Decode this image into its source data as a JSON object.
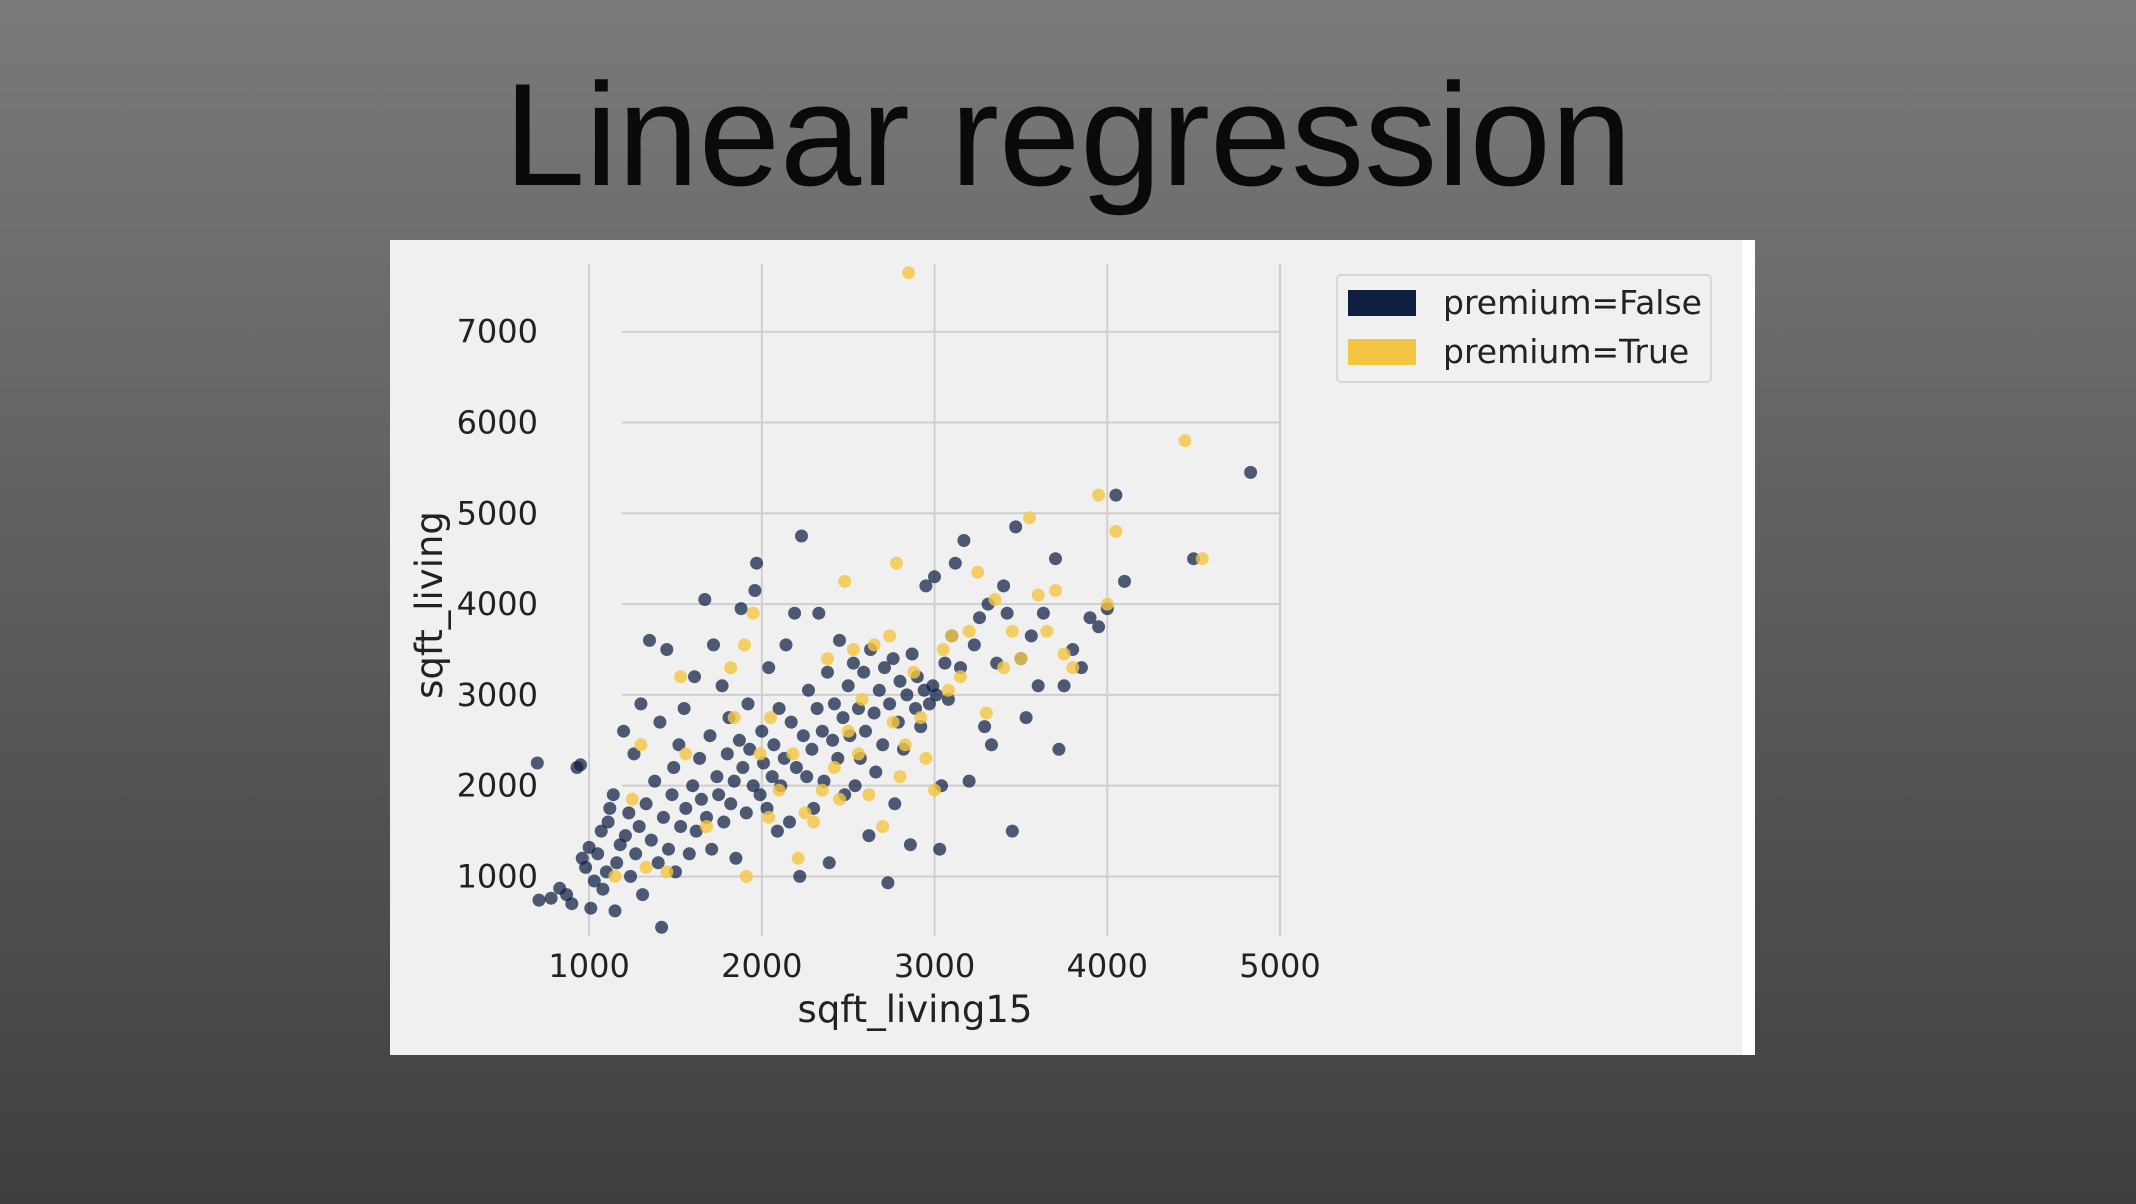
{
  "slide": {
    "title": "Linear regression"
  },
  "colors": {
    "false_series": "#0e1f42",
    "true_series": "#f4c542",
    "grid": "#cfcfcf",
    "plot_bg": "#f0f0f0"
  },
  "chart_data": {
    "type": "scatter",
    "title": "",
    "xlabel": "sqft_living15",
    "ylabel": "sqft_living",
    "xlim": [
      600,
      5000
    ],
    "ylim": [
      300,
      7900
    ],
    "xticks": [
      1000,
      2000,
      3000,
      4000,
      5000
    ],
    "yticks": [
      1000,
      2000,
      3000,
      4000,
      5000,
      6000,
      7000
    ],
    "grid": true,
    "legend_placement": "outside-top-right",
    "series": [
      {
        "name": "premium=False",
        "color": "#0e1f42",
        "points": [
          [
            700,
            2250
          ],
          [
            710,
            740
          ],
          [
            780,
            760
          ],
          [
            830,
            870
          ],
          [
            870,
            800
          ],
          [
            900,
            700
          ],
          [
            930,
            2200
          ],
          [
            950,
            2230
          ],
          [
            960,
            1200
          ],
          [
            980,
            1100
          ],
          [
            1000,
            1320
          ],
          [
            1010,
            650
          ],
          [
            1030,
            950
          ],
          [
            1050,
            1250
          ],
          [
            1070,
            1500
          ],
          [
            1080,
            860
          ],
          [
            1100,
            1050
          ],
          [
            1110,
            1600
          ],
          [
            1120,
            1750
          ],
          [
            1140,
            1900
          ],
          [
            1150,
            620
          ],
          [
            1160,
            1150
          ],
          [
            1180,
            1350
          ],
          [
            1200,
            2600
          ],
          [
            1210,
            1450
          ],
          [
            1230,
            1700
          ],
          [
            1240,
            1000
          ],
          [
            1260,
            2350
          ],
          [
            1270,
            1250
          ],
          [
            1290,
            1550
          ],
          [
            1300,
            2900
          ],
          [
            1310,
            800
          ],
          [
            1330,
            1800
          ],
          [
            1350,
            3600
          ],
          [
            1360,
            1400
          ],
          [
            1380,
            2050
          ],
          [
            1400,
            1150
          ],
          [
            1410,
            2700
          ],
          [
            1420,
            440
          ],
          [
            1430,
            1650
          ],
          [
            1450,
            3500
          ],
          [
            1460,
            1300
          ],
          [
            1480,
            1900
          ],
          [
            1490,
            2200
          ],
          [
            1500,
            1050
          ],
          [
            1520,
            2450
          ],
          [
            1530,
            1550
          ],
          [
            1550,
            2850
          ],
          [
            1560,
            1750
          ],
          [
            1580,
            1250
          ],
          [
            1600,
            2000
          ],
          [
            1610,
            3200
          ],
          [
            1620,
            1500
          ],
          [
            1640,
            2300
          ],
          [
            1650,
            1850
          ],
          [
            1670,
            4050
          ],
          [
            1680,
            1650
          ],
          [
            1700,
            2550
          ],
          [
            1710,
            1300
          ],
          [
            1720,
            3550
          ],
          [
            1740,
            2100
          ],
          [
            1750,
            1900
          ],
          [
            1770,
            3100
          ],
          [
            1780,
            1600
          ],
          [
            1800,
            2350
          ],
          [
            1810,
            2750
          ],
          [
            1820,
            1800
          ],
          [
            1840,
            2050
          ],
          [
            1850,
            1200
          ],
          [
            1870,
            2500
          ],
          [
            1880,
            3950
          ],
          [
            1890,
            2200
          ],
          [
            1910,
            1700
          ],
          [
            1920,
            2900
          ],
          [
            1930,
            2400
          ],
          [
            1950,
            2000
          ],
          [
            1960,
            4150
          ],
          [
            1970,
            4450
          ],
          [
            1990,
            1900
          ],
          [
            2000,
            2600
          ],
          [
            2010,
            2250
          ],
          [
            2030,
            1750
          ],
          [
            2040,
            3300
          ],
          [
            2060,
            2100
          ],
          [
            2070,
            2450
          ],
          [
            2090,
            1500
          ],
          [
            2100,
            2850
          ],
          [
            2110,
            2000
          ],
          [
            2130,
            2300
          ],
          [
            2140,
            3550
          ],
          [
            2160,
            1600
          ],
          [
            2170,
            2700
          ],
          [
            2190,
            3900
          ],
          [
            2200,
            2200
          ],
          [
            2220,
            1000
          ],
          [
            2230,
            4750
          ],
          [
            2240,
            2550
          ],
          [
            2260,
            2100
          ],
          [
            2270,
            3050
          ],
          [
            2290,
            2400
          ],
          [
            2300,
            1750
          ],
          [
            2320,
            2850
          ],
          [
            2330,
            3900
          ],
          [
            2350,
            2600
          ],
          [
            2360,
            2050
          ],
          [
            2380,
            3250
          ],
          [
            2390,
            1150
          ],
          [
            2410,
            2500
          ],
          [
            2420,
            2900
          ],
          [
            2440,
            2300
          ],
          [
            2450,
            3600
          ],
          [
            2470,
            2750
          ],
          [
            2480,
            1900
          ],
          [
            2500,
            3100
          ],
          [
            2510,
            2550
          ],
          [
            2530,
            3350
          ],
          [
            2540,
            2000
          ],
          [
            2560,
            2850
          ],
          [
            2570,
            2300
          ],
          [
            2590,
            3250
          ],
          [
            2600,
            2600
          ],
          [
            2620,
            1450
          ],
          [
            2630,
            3500
          ],
          [
            2650,
            2800
          ],
          [
            2660,
            2150
          ],
          [
            2680,
            3050
          ],
          [
            2700,
            2450
          ],
          [
            2710,
            3300
          ],
          [
            2730,
            930
          ],
          [
            2740,
            2900
          ],
          [
            2760,
            3400
          ],
          [
            2770,
            1800
          ],
          [
            2790,
            2700
          ],
          [
            2800,
            3150
          ],
          [
            2820,
            2400
          ],
          [
            2840,
            3000
          ],
          [
            2860,
            1350
          ],
          [
            2870,
            3450
          ],
          [
            2890,
            2850
          ],
          [
            2900,
            3200
          ],
          [
            2920,
            2650
          ],
          [
            2940,
            3050
          ],
          [
            2950,
            4200
          ],
          [
            2970,
            2900
          ],
          [
            2990,
            3100
          ],
          [
            3000,
            4300
          ],
          [
            3010,
            3000
          ],
          [
            3030,
            1300
          ],
          [
            3040,
            2000
          ],
          [
            3060,
            3350
          ],
          [
            3080,
            2950
          ],
          [
            3100,
            3650
          ],
          [
            3120,
            4450
          ],
          [
            3150,
            3300
          ],
          [
            3170,
            4700
          ],
          [
            3200,
            2050
          ],
          [
            3230,
            3550
          ],
          [
            3260,
            3850
          ],
          [
            3290,
            2650
          ],
          [
            3310,
            4000
          ],
          [
            3330,
            2450
          ],
          [
            3360,
            3350
          ],
          [
            3400,
            4200
          ],
          [
            3420,
            3900
          ],
          [
            3450,
            1500
          ],
          [
            3470,
            4850
          ],
          [
            3500,
            3400
          ],
          [
            3530,
            2750
          ],
          [
            3560,
            3650
          ],
          [
            3600,
            3100
          ],
          [
            3630,
            3900
          ],
          [
            3700,
            4500
          ],
          [
            3720,
            2400
          ],
          [
            3750,
            3100
          ],
          [
            3800,
            3500
          ],
          [
            3850,
            3300
          ],
          [
            3900,
            3850
          ],
          [
            3950,
            3750
          ],
          [
            4000,
            3950
          ],
          [
            4050,
            5200
          ],
          [
            4100,
            4250
          ],
          [
            4500,
            4500
          ],
          [
            4830,
            5450
          ]
        ]
      },
      {
        "name": "premium=True",
        "color": "#f4c542",
        "points": [
          [
            1150,
            1000
          ],
          [
            1250,
            1850
          ],
          [
            1300,
            2450
          ],
          [
            1330,
            1100
          ],
          [
            1450,
            1050
          ],
          [
            1530,
            3200
          ],
          [
            1560,
            2350
          ],
          [
            1680,
            1550
          ],
          [
            1820,
            3300
          ],
          [
            1840,
            2750
          ],
          [
            1900,
            3550
          ],
          [
            1910,
            1000
          ],
          [
            1950,
            3900
          ],
          [
            1990,
            2350
          ],
          [
            2040,
            1650
          ],
          [
            2050,
            2750
          ],
          [
            2100,
            1950
          ],
          [
            2180,
            2350
          ],
          [
            2210,
            1200
          ],
          [
            2250,
            1700
          ],
          [
            2300,
            1600
          ],
          [
            2350,
            1950
          ],
          [
            2380,
            3400
          ],
          [
            2420,
            2200
          ],
          [
            2450,
            1850
          ],
          [
            2480,
            4250
          ],
          [
            2500,
            2600
          ],
          [
            2530,
            3500
          ],
          [
            2560,
            2350
          ],
          [
            2580,
            2950
          ],
          [
            2620,
            1900
          ],
          [
            2650,
            3550
          ],
          [
            2700,
            1550
          ],
          [
            2740,
            3650
          ],
          [
            2760,
            2700
          ],
          [
            2780,
            4450
          ],
          [
            2800,
            2100
          ],
          [
            2830,
            2450
          ],
          [
            2850,
            7650
          ],
          [
            2880,
            3250
          ],
          [
            2920,
            2750
          ],
          [
            2950,
            2300
          ],
          [
            3000,
            1950
          ],
          [
            3050,
            3500
          ],
          [
            3080,
            3050
          ],
          [
            3100,
            3650
          ],
          [
            3150,
            3200
          ],
          [
            3200,
            3700
          ],
          [
            3250,
            4350
          ],
          [
            3300,
            2800
          ],
          [
            3350,
            4050
          ],
          [
            3400,
            3300
          ],
          [
            3450,
            3700
          ],
          [
            3500,
            3400
          ],
          [
            3550,
            4950
          ],
          [
            3600,
            4100
          ],
          [
            3650,
            3700
          ],
          [
            3700,
            4150
          ],
          [
            3750,
            3450
          ],
          [
            3800,
            3300
          ],
          [
            3950,
            5200
          ],
          [
            4000,
            4000
          ],
          [
            4050,
            4800
          ],
          [
            4450,
            5800
          ],
          [
            4550,
            4500
          ]
        ]
      }
    ]
  }
}
